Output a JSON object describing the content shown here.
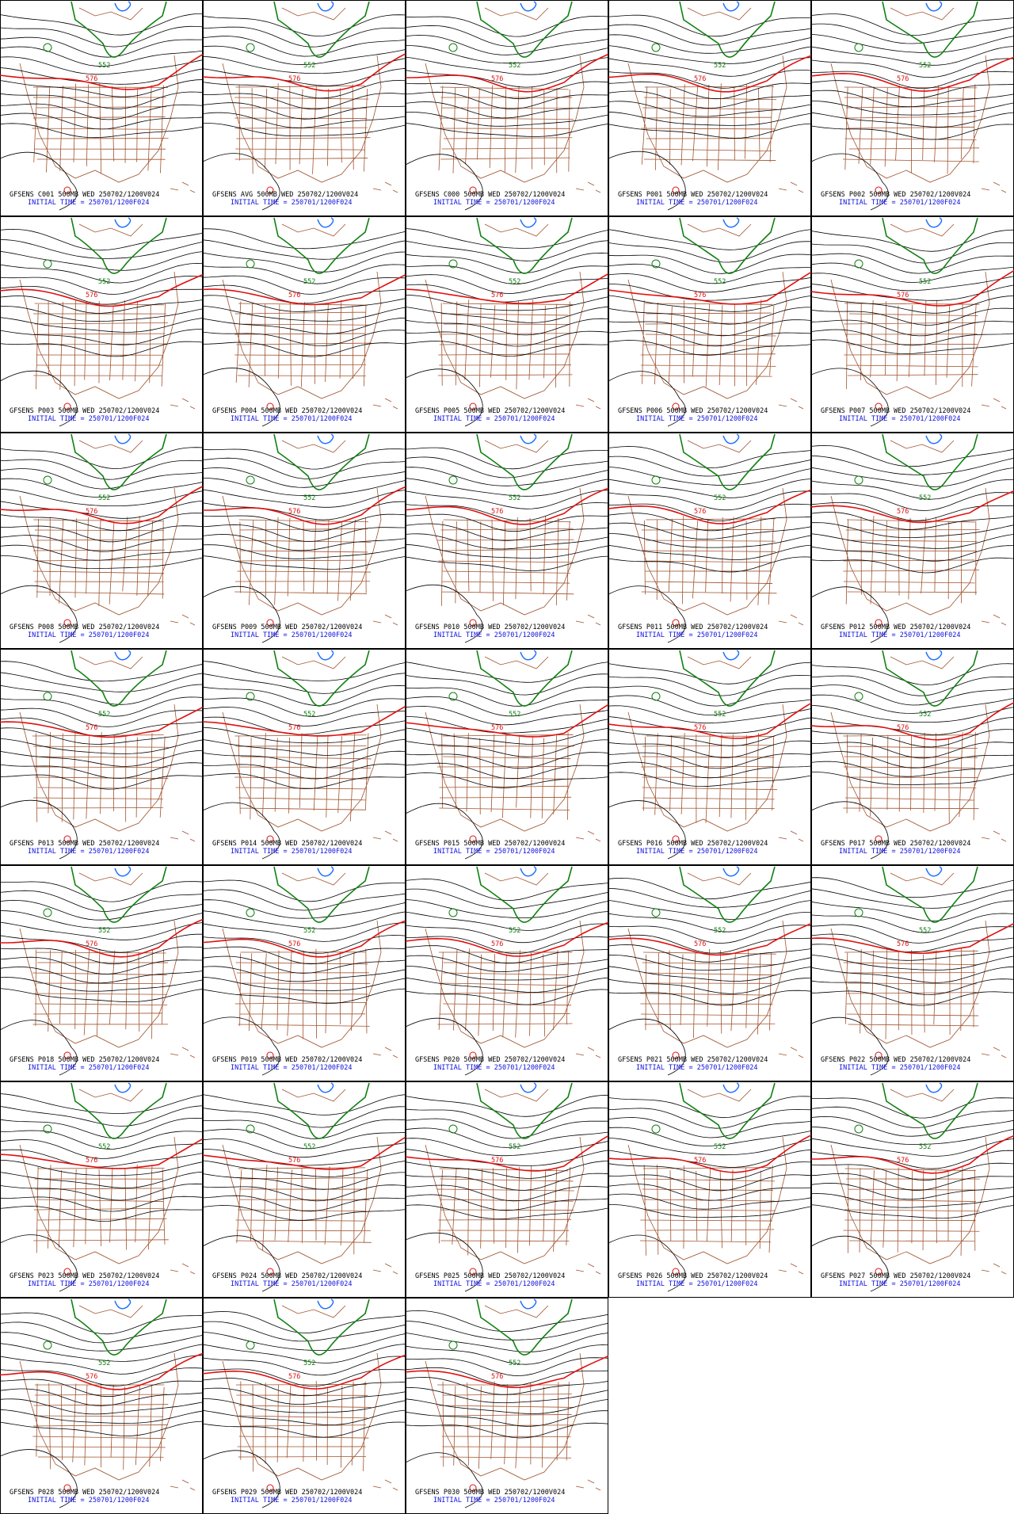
{
  "panels": [
    {
      "line1": "GFSENS C001 500MB WED 250702/1200V024",
      "line2": "INITIAL TIME = 250701/1200F024",
      "labels": [
        "576",
        "552"
      ]
    },
    {
      "line1": "GFSENS AVG 500MB WED 250702/1200V024",
      "line2": "INITIAL TIME = 250701/1200F024",
      "labels": [
        "576",
        "552"
      ]
    },
    {
      "line1": "GFSENS C000 500MB WED 250702/1200V024",
      "line2": "INITIAL TIME = 250701/1200F024",
      "labels": [
        "576",
        "552"
      ]
    },
    {
      "line1": "GFSENS P001 500MB WED 250702/1200V024",
      "line2": "INITIAL TIME = 250701/1200F024",
      "labels": [
        "576",
        "552"
      ]
    },
    {
      "line1": "GFSENS P002 500MB WED 250702/1200V024",
      "line2": "INITIAL TIME = 250701/1200F024",
      "labels": [
        "576",
        "552"
      ]
    },
    {
      "line1": "GFSENS P003 500MB WED 250702/1200V024",
      "line2": "INITIAL TIME = 250701/1200F024",
      "labels": [
        "576",
        "552"
      ]
    },
    {
      "line1": "GFSENS P004 500MB WED 250702/1200V024",
      "line2": "INITIAL TIME = 250701/1200F024",
      "labels": [
        "576",
        "552"
      ]
    },
    {
      "line1": "GFSENS P005 500MB WED 250702/1200V024",
      "line2": "INITIAL TIME = 250701/1200F024",
      "labels": [
        "576",
        "552"
      ]
    },
    {
      "line1": "GFSENS P006 500MB WED 250702/1200V024",
      "line2": "INITIAL TIME = 250701/1200F024",
      "labels": [
        "576",
        "552"
      ]
    },
    {
      "line1": "GFSENS P007 500MB WED 250702/1200V024",
      "line2": "INITIAL TIME = 250701/1200F024",
      "labels": [
        "576",
        "552"
      ]
    },
    {
      "line1": "GFSENS P008 500MB WED 250702/1200V024",
      "line2": "INITIAL TIME = 250701/1200F024",
      "labels": [
        "576",
        "552"
      ]
    },
    {
      "line1": "GFSENS P009 500MB WED 250702/1200V024",
      "line2": "INITIAL TIME = 250701/1200F024",
      "labels": [
        "576",
        "552"
      ]
    },
    {
      "line1": "GFSENS P010 500MB WED 250702/1200V024",
      "line2": "INITIAL TIME = 250701/1200F024",
      "labels": [
        "576",
        "552"
      ]
    },
    {
      "line1": "GFSENS P011 500MB WED 250702/1200V024",
      "line2": "INITIAL TIME = 250701/1200F024",
      "labels": [
        "576",
        "552"
      ]
    },
    {
      "line1": "GFSENS P012 500MB WED 250702/1200V024",
      "line2": "INITIAL TIME = 250701/1200F024",
      "labels": [
        "576",
        "552"
      ]
    },
    {
      "line1": "GFSENS P013 500MB WED 250702/1200V024",
      "line2": "INITIAL TIME = 250701/1200F024",
      "labels": [
        "576",
        "552"
      ]
    },
    {
      "line1": "GFSENS P014 500MB WED 250702/1200V024",
      "line2": "INITIAL TIME = 250701/1200F024",
      "labels": [
        "576",
        "552"
      ]
    },
    {
      "line1": "GFSENS P015 500MB WED 250702/1200V024",
      "line2": "INITIAL TIME = 250701/1200F024",
      "labels": [
        "576",
        "552"
      ]
    },
    {
      "line1": "GFSENS P016 500MB WED 250702/1200V024",
      "line2": "INITIAL TIME = 250701/1200F024",
      "labels": [
        "576",
        "552"
      ]
    },
    {
      "line1": "GFSENS P017 500MB WED 250702/1200V024",
      "line2": "INITIAL TIME = 250701/1200F024",
      "labels": [
        "576",
        "552"
      ]
    },
    {
      "line1": "GFSENS P018 500MB WED 250702/1200V024",
      "line2": "INITIAL TIME = 250701/1200F024",
      "labels": [
        "576",
        "552"
      ]
    },
    {
      "line1": "GFSENS P019 500MB WED 250702/1200V024",
      "line2": "INITIAL TIME = 250701/1200F024",
      "labels": [
        "576",
        "552"
      ]
    },
    {
      "line1": "GFSENS P020 500MB WED 250702/1200V024",
      "line2": "INITIAL TIME = 250701/1200F024",
      "labels": [
        "576",
        "552"
      ]
    },
    {
      "line1": "GFSENS P021 500MB WED 250702/1200V024",
      "line2": "INITIAL TIME = 250701/1200F024",
      "labels": [
        "576",
        "552"
      ]
    },
    {
      "line1": "GFSENS P022 500MB WED 250702/1200V024",
      "line2": "INITIAL TIME = 250701/1200F024",
      "labels": [
        "576",
        "552"
      ]
    },
    {
      "line1": "GFSENS P023 500MB WED 250702/1200V024",
      "line2": "INITIAL TIME = 250701/1200F024",
      "labels": [
        "576",
        "552"
      ]
    },
    {
      "line1": "GFSENS P024 500MB WED 250702/1200V024",
      "line2": "INITIAL TIME = 250701/1200F024",
      "labels": [
        "576",
        "552"
      ]
    },
    {
      "line1": "GFSENS P025 500MB WED 250702/1200V024",
      "line2": "INITIAL TIME = 250701/1200F024",
      "labels": [
        "576",
        "552"
      ]
    },
    {
      "line1": "GFSENS P026 500MB WED 250702/1200V024",
      "line2": "INITIAL TIME = 250701/1200F024",
      "labels": [
        "576",
        "552"
      ]
    },
    {
      "line1": "GFSENS P027 500MB WED 250702/1200V024",
      "line2": "INITIAL TIME = 250701/1200F024",
      "labels": [
        "576",
        "552"
      ]
    },
    {
      "line1": "GFSENS P028 500MB WED 250702/1200V024",
      "line2": "INITIAL TIME = 250701/1200F024",
      "labels": [
        "576",
        "552"
      ]
    },
    {
      "line1": "GFSENS P029 500MB WED 250702/1200V024",
      "line2": "INITIAL TIME = 250701/1200F024",
      "labels": [
        "576",
        "552"
      ]
    },
    {
      "line1": "GFSENS P030 500MB WED 250702/1200V024",
      "line2": "INITIAL TIME = 250701/1200F024",
      "labels": [
        "576",
        "552"
      ]
    }
  ]
}
